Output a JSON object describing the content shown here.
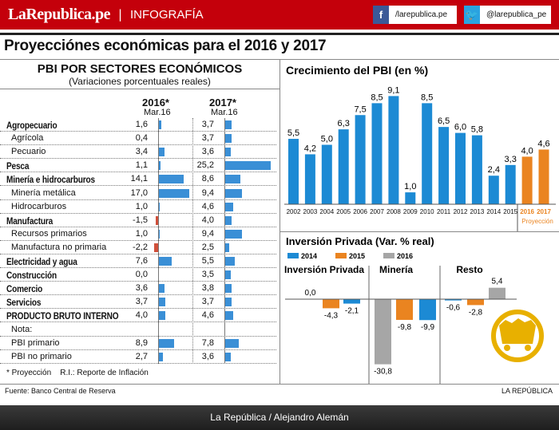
{
  "header": {
    "logo": "LaRepublica.pe",
    "separator": "|",
    "section": "INFOGRAFÍA",
    "facebook": "/larepublica.pe",
    "twitter": "@larepublica_pe",
    "facebook_icon": "facebook-icon",
    "twitter_icon": "twitter-icon",
    "brand_color": "#c4000b"
  },
  "title": "Proyecciónes económicas para el 2016 y 2017",
  "table": {
    "title": "PBI POR SECTORES ECONÓMICOS",
    "subtitle": "(Variaciones porcentuales reales)",
    "col1": "2016*",
    "col1_sub": "Mar.16",
    "col2": "2017*",
    "col2_sub": "Mar.16",
    "rows": [
      {
        "label": "Agropecuario",
        "v2016": "1,6",
        "v2017": "3,7",
        "bold": true
      },
      {
        "label": "Agrícola",
        "v2016": "0,4",
        "v2017": "3,7"
      },
      {
        "label": "Pecuario",
        "v2016": "3,4",
        "v2017": "3,6"
      },
      {
        "label": "Pesca",
        "v2016": "1,1",
        "v2017": "25,2",
        "bold": true
      },
      {
        "label": "Minería e hidrocarburos",
        "v2016": "14,1",
        "v2017": "8,6",
        "bold": true
      },
      {
        "label": "Minería metálica",
        "v2016": "17,0",
        "v2017": "9,4"
      },
      {
        "label": "Hidrocarburos",
        "v2016": "1,0",
        "v2017": "4,6"
      },
      {
        "label": "Manufactura",
        "v2016": "-1,5",
        "v2017": "4,0",
        "bold": true
      },
      {
        "label": "Recursos primarios",
        "v2016": "1,0",
        "v2017": "9,4"
      },
      {
        "label": "Manufactura no primaria",
        "v2016": "-2,2",
        "v2017": "2,5"
      },
      {
        "label": "Electricidad y agua",
        "v2016": "7,6",
        "v2017": "5,5",
        "bold": true
      },
      {
        "label": "Construcción",
        "v2016": "0,0",
        "v2017": "3,5",
        "bold": true
      },
      {
        "label": "Comercio",
        "v2016": "3,6",
        "v2017": "3,8",
        "bold": true
      },
      {
        "label": "Servicios",
        "v2016": "3,7",
        "v2017": "3,7",
        "bold": true
      },
      {
        "label": "PRODUCTO BRUTO INTERNO",
        "v2016": "4,0",
        "v2017": "4,6",
        "bold": true
      },
      {
        "label": "Nota:",
        "v2016": "",
        "v2017": ""
      },
      {
        "label": "PBI primario",
        "v2016": "8,9",
        "v2017": "7,8"
      },
      {
        "label": "PBI no primario",
        "v2016": "2,7",
        "v2017": "3,6"
      }
    ],
    "footnote": "* Proyección    R.I.: Reporte de Inflación",
    "positive_color": "#3a8fd6",
    "negative_color": "#d0503a"
  },
  "chart_data": [
    {
      "type": "bar",
      "title": "Crecimiento del PBI (en %)",
      "categories": [
        "2002",
        "2003",
        "2004",
        "2005",
        "2006",
        "2007",
        "2008",
        "2009",
        "2010",
        "2011",
        "2012",
        "2013",
        "2014",
        "2015",
        "2016",
        "2017"
      ],
      "values": [
        5.5,
        4.2,
        5.0,
        6.3,
        7.5,
        8.5,
        9.1,
        1.0,
        8.5,
        6.5,
        6.0,
        5.8,
        2.4,
        3.3,
        4.0,
        4.6
      ],
      "labels": [
        "5,5",
        "4,2",
        "5,0",
        "6,3",
        "7,5",
        "8,5",
        "9,1",
        "1,0",
        "8,5",
        "6,5",
        "6,0",
        "5,8",
        "2,4",
        "3,3",
        "4,0",
        "4,6"
      ],
      "projected": [
        false,
        false,
        false,
        false,
        false,
        false,
        false,
        false,
        false,
        false,
        false,
        false,
        false,
        false,
        true,
        true
      ],
      "annotation": "Proyección",
      "colors": {
        "actual": "#1c8ad4",
        "projected": "#ea8420"
      }
    },
    {
      "type": "bar",
      "title": "Inversión Privada (Var. % real)",
      "legend": [
        {
          "name": "2014",
          "color": "#1c8ad4"
        },
        {
          "name": "2015",
          "color": "#ea8420"
        },
        {
          "name": "2016",
          "color": "#a6a6a6"
        }
      ],
      "groups": [
        {
          "name": "Inversión Privada",
          "bars": [
            {
              "series": "2016",
              "value": 0.0,
              "label": "0,0"
            },
            {
              "series": "2015",
              "value": -4.3,
              "label": "-4,3"
            },
            {
              "series": "2014",
              "value": -2.1,
              "label": "-2,1"
            }
          ]
        },
        {
          "name": "Minería",
          "bars": [
            {
              "series": "2016",
              "value": -30.8,
              "label": "-30,8"
            },
            {
              "series": "2015",
              "value": -9.8,
              "label": "-9,8"
            },
            {
              "series": "2014",
              "value": -9.9,
              "label": "-9,9"
            }
          ]
        },
        {
          "name": "Resto",
          "bars": [
            {
              "series": "2014",
              "value": -0.6,
              "label": "-0,6"
            },
            {
              "series": "2015",
              "value": -2.8,
              "label": "-2,8"
            },
            {
              "series": "2016",
              "value": 5.4,
              "label": "5,4"
            }
          ]
        }
      ],
      "icon": "mine-cart-icon",
      "icon_color": "#e8b000"
    }
  ],
  "source": "Fuente: Banco Central de Reserva",
  "brand_footer": "LA REPÚBLICA",
  "credit": "La República / Alejandro Alemán"
}
